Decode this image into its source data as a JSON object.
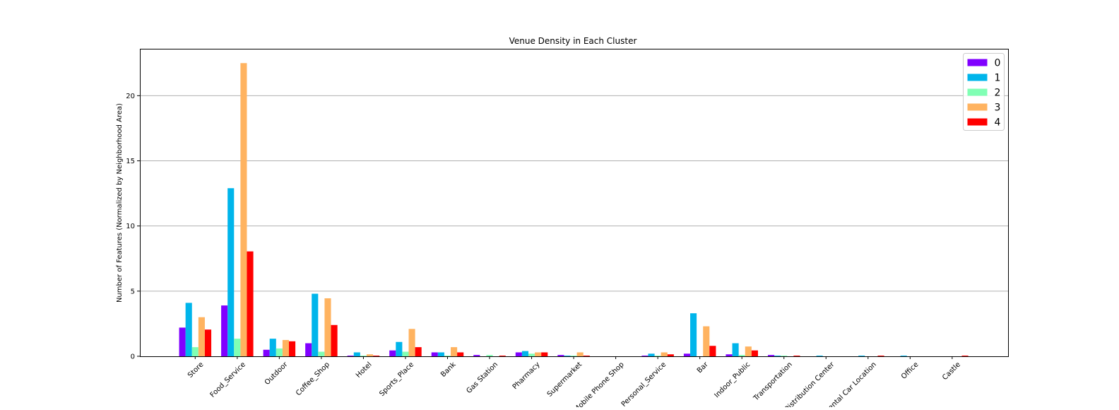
{
  "chart_data": {
    "type": "bar",
    "title": "Venue Density in Each Cluster",
    "xlabel": "",
    "ylabel": "Number of Features (Normalized by Neighborhood Area)",
    "ylim": [
      0,
      23.6
    ],
    "yticks": [
      0,
      5,
      10,
      15,
      20
    ],
    "grid": "horizontal",
    "legend_position": "top-right",
    "categories": [
      "Store",
      "Food_Service",
      "Outdoor",
      "Coffee_Shop",
      "Hotel",
      "Sports_Place",
      "Bank",
      "Gas Station",
      "Pharmacy",
      "Supermarket",
      "Mobile Phone Shop",
      "Personal_Service",
      "Bar",
      "Indoor_Public",
      "Transportation",
      "Distribution Center",
      "Rental Car Location",
      "Office",
      "Castle"
    ],
    "series": [
      {
        "name": "0",
        "color": "#8000ff",
        "values": [
          2.2,
          3.9,
          0.5,
          1.0,
          0.05,
          0.45,
          0.3,
          0.1,
          0.3,
          0.1,
          0.0,
          0.05,
          0.2,
          0.15,
          0.1,
          0.0,
          0.0,
          0.0,
          0.0
        ]
      },
      {
        "name": "1",
        "color": "#00b5eb",
        "values": [
          4.1,
          12.9,
          1.35,
          4.8,
          0.3,
          1.1,
          0.3,
          0.0,
          0.4,
          0.05,
          0.0,
          0.2,
          3.3,
          1.0,
          0.05,
          0.05,
          0.05,
          0.05,
          0.0
        ]
      },
      {
        "name": "2",
        "color": "#80ffb4",
        "values": [
          0.7,
          1.35,
          0.6,
          0.35,
          0.05,
          0.35,
          0.05,
          0.1,
          0.2,
          0.05,
          0.0,
          0.05,
          0.0,
          0.1,
          0.05,
          0.0,
          0.0,
          0.0,
          0.0
        ]
      },
      {
        "name": "3",
        "color": "#ffb360",
        "values": [
          3.0,
          22.5,
          1.25,
          4.45,
          0.15,
          2.1,
          0.7,
          0.0,
          0.3,
          0.3,
          0.0,
          0.3,
          2.3,
          0.75,
          0.0,
          0.0,
          0.0,
          0.0,
          0.0
        ]
      },
      {
        "name": "4",
        "color": "#ff0000",
        "values": [
          2.05,
          8.05,
          1.15,
          2.4,
          0.05,
          0.7,
          0.3,
          0.05,
          0.3,
          0.05,
          0.0,
          0.15,
          0.8,
          0.45,
          0.05,
          0.0,
          0.05,
          0.0,
          0.05
        ]
      }
    ]
  }
}
